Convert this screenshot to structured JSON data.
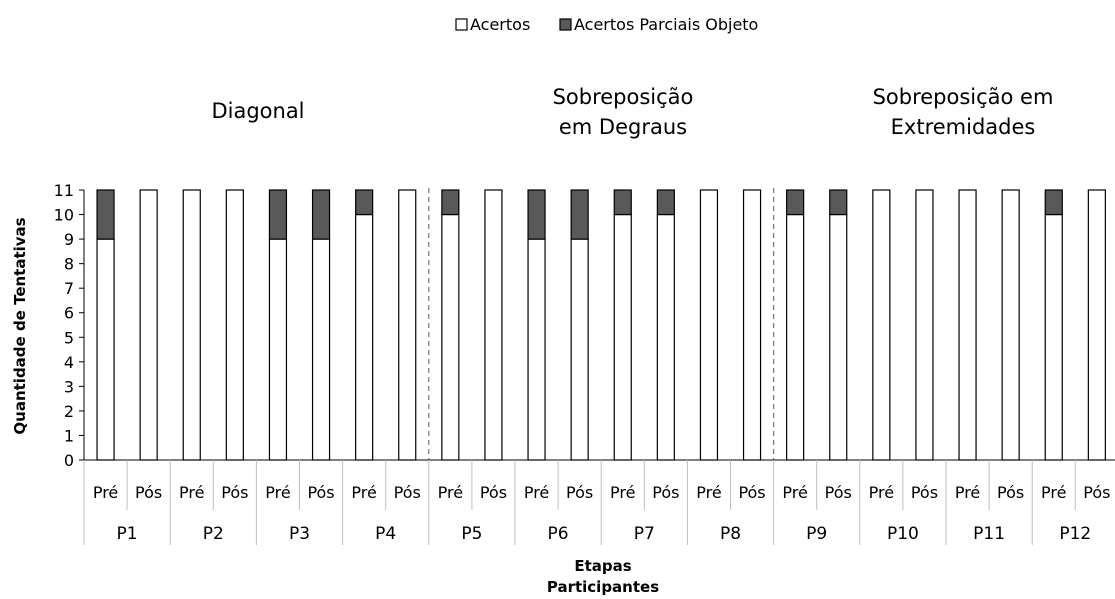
{
  "chart_data": {
    "type": "bar",
    "stacked": true,
    "ylabel": "Quantidade de Tentativas",
    "xlabel": "Etapas",
    "xlabel2": "Participantes",
    "ylim": [
      0,
      11
    ],
    "yticks": [
      0,
      1,
      2,
      3,
      4,
      5,
      6,
      7,
      8,
      9,
      10,
      11
    ],
    "grid": false,
    "legend_position": "top-center",
    "sections": [
      {
        "title_lines": [
          "Diagonal"
        ],
        "participants": 4
      },
      {
        "title_lines": [
          "Sobreposição",
          "em Degraus"
        ],
        "participants": 4
      },
      {
        "title_lines": [
          "Sobreposição em",
          "Extremidades"
        ],
        "participants": 4
      }
    ],
    "participants": [
      "P1",
      "P2",
      "P3",
      "P4",
      "P5",
      "P6",
      "P7",
      "P8",
      "P9",
      "P10",
      "P11",
      "P12"
    ],
    "phases": [
      "Pré",
      "Pós"
    ],
    "categories": [
      "P1 Pré",
      "P1 Pós",
      "P2 Pré",
      "P2 Pós",
      "P3 Pré",
      "P3 Pós",
      "P4 Pré",
      "P4 Pós",
      "P5 Pré",
      "P5 Pós",
      "P6 Pré",
      "P6 Pós",
      "P7 Pré",
      "P7 Pós",
      "P8 Pré",
      "P8 Pós",
      "P9 Pré",
      "P9 Pós",
      "P10 Pré",
      "P10 Pós",
      "P11 Pré",
      "P11 Pós",
      "P12 Pré",
      "P12 Pós"
    ],
    "series": [
      {
        "name": "Acertos",
        "color": "#ffffff",
        "values": [
          9,
          11,
          11,
          11,
          9,
          9,
          10,
          11,
          10,
          11,
          9,
          9,
          10,
          10,
          11,
          11,
          10,
          10,
          11,
          11,
          11,
          11,
          10,
          11
        ]
      },
      {
        "name": "Acertos Parciais Objeto",
        "color": "#595959",
        "values": [
          2,
          0,
          0,
          0,
          2,
          2,
          1,
          0,
          1,
          0,
          2,
          2,
          1,
          1,
          0,
          0,
          1,
          1,
          0,
          0,
          0,
          0,
          1,
          0
        ]
      }
    ]
  }
}
